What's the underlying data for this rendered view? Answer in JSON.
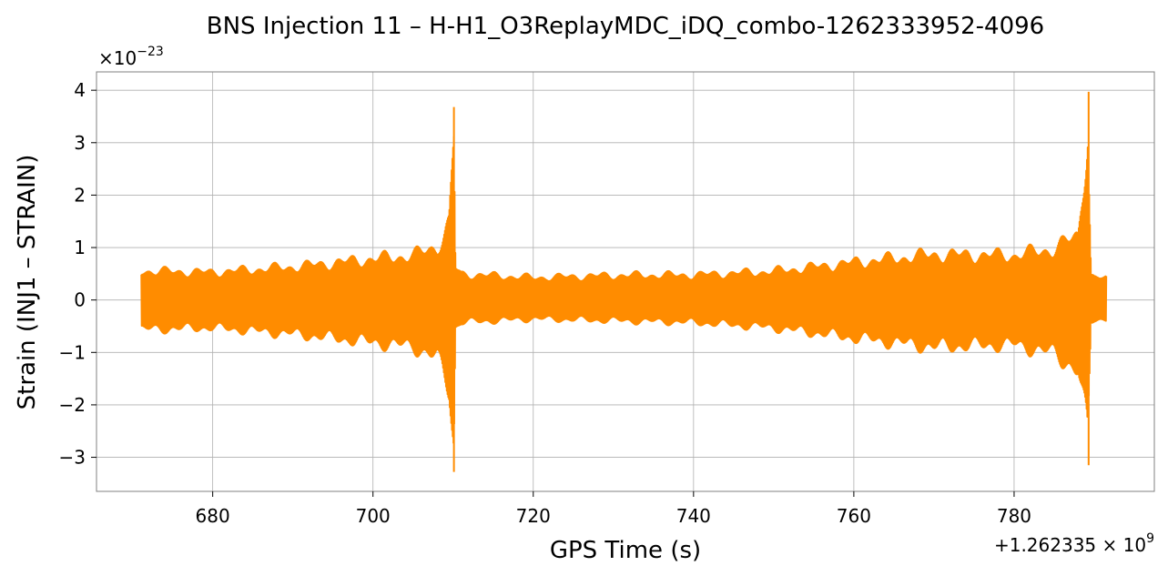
{
  "chart_data": {
    "type": "line",
    "title": "BNS Injection 11 – H-H1_O3ReplayMDC_iDQ_combo-1262333952-4096",
    "xlabel": "GPS Time (s)",
    "ylabel": "Strain (INJ1 – STRAIN)",
    "x_offset_label": "+1.262335 × 10",
    "x_offset_exp": "9",
    "y_scale_label": "×10",
    "y_scale_exp": "−23",
    "xlim": [
      665.5,
      797.5
    ],
    "ylim": [
      -3.65,
      4.35
    ],
    "grid": true,
    "line_color": "#ff8c00",
    "x_ticks": [
      680,
      700,
      720,
      740,
      760,
      780
    ],
    "x_tick_labels": [
      "680",
      "700",
      "720",
      "740",
      "760",
      "780"
    ],
    "y_ticks": [
      -3,
      -2,
      -1,
      0,
      1,
      2,
      3,
      4
    ],
    "y_tick_labels": [
      "−3",
      "−2",
      "−1",
      "0",
      "1",
      "2",
      "3",
      "4"
    ],
    "series": [
      {
        "x": [
          671.1,
          680,
          690,
          700,
          705,
          708,
          709.5,
          710.1,
          710.3,
          711,
          720,
          730,
          740,
          750,
          760,
          770,
          780,
          785,
          788,
          789.2,
          789.6,
          790,
          791.5
        ],
        "upper": [
          0.65,
          0.62,
          0.74,
          0.92,
          1.0,
          1.2,
          1.7,
          3.68,
          0.72,
          0.58,
          0.5,
          0.55,
          0.56,
          0.64,
          0.84,
          1.02,
          1.0,
          1.15,
          1.45,
          3.97,
          0.55,
          0.5,
          0.48
        ],
        "lower": [
          -0.66,
          -0.62,
          -0.76,
          -0.95,
          -1.05,
          -1.3,
          -2.0,
          -3.28,
          -0.62,
          -0.5,
          -0.42,
          -0.46,
          -0.5,
          -0.62,
          -0.85,
          -1.05,
          -1.0,
          -1.2,
          -1.6,
          -3.15,
          -0.5,
          -0.45,
          -0.42
        ]
      }
    ]
  }
}
